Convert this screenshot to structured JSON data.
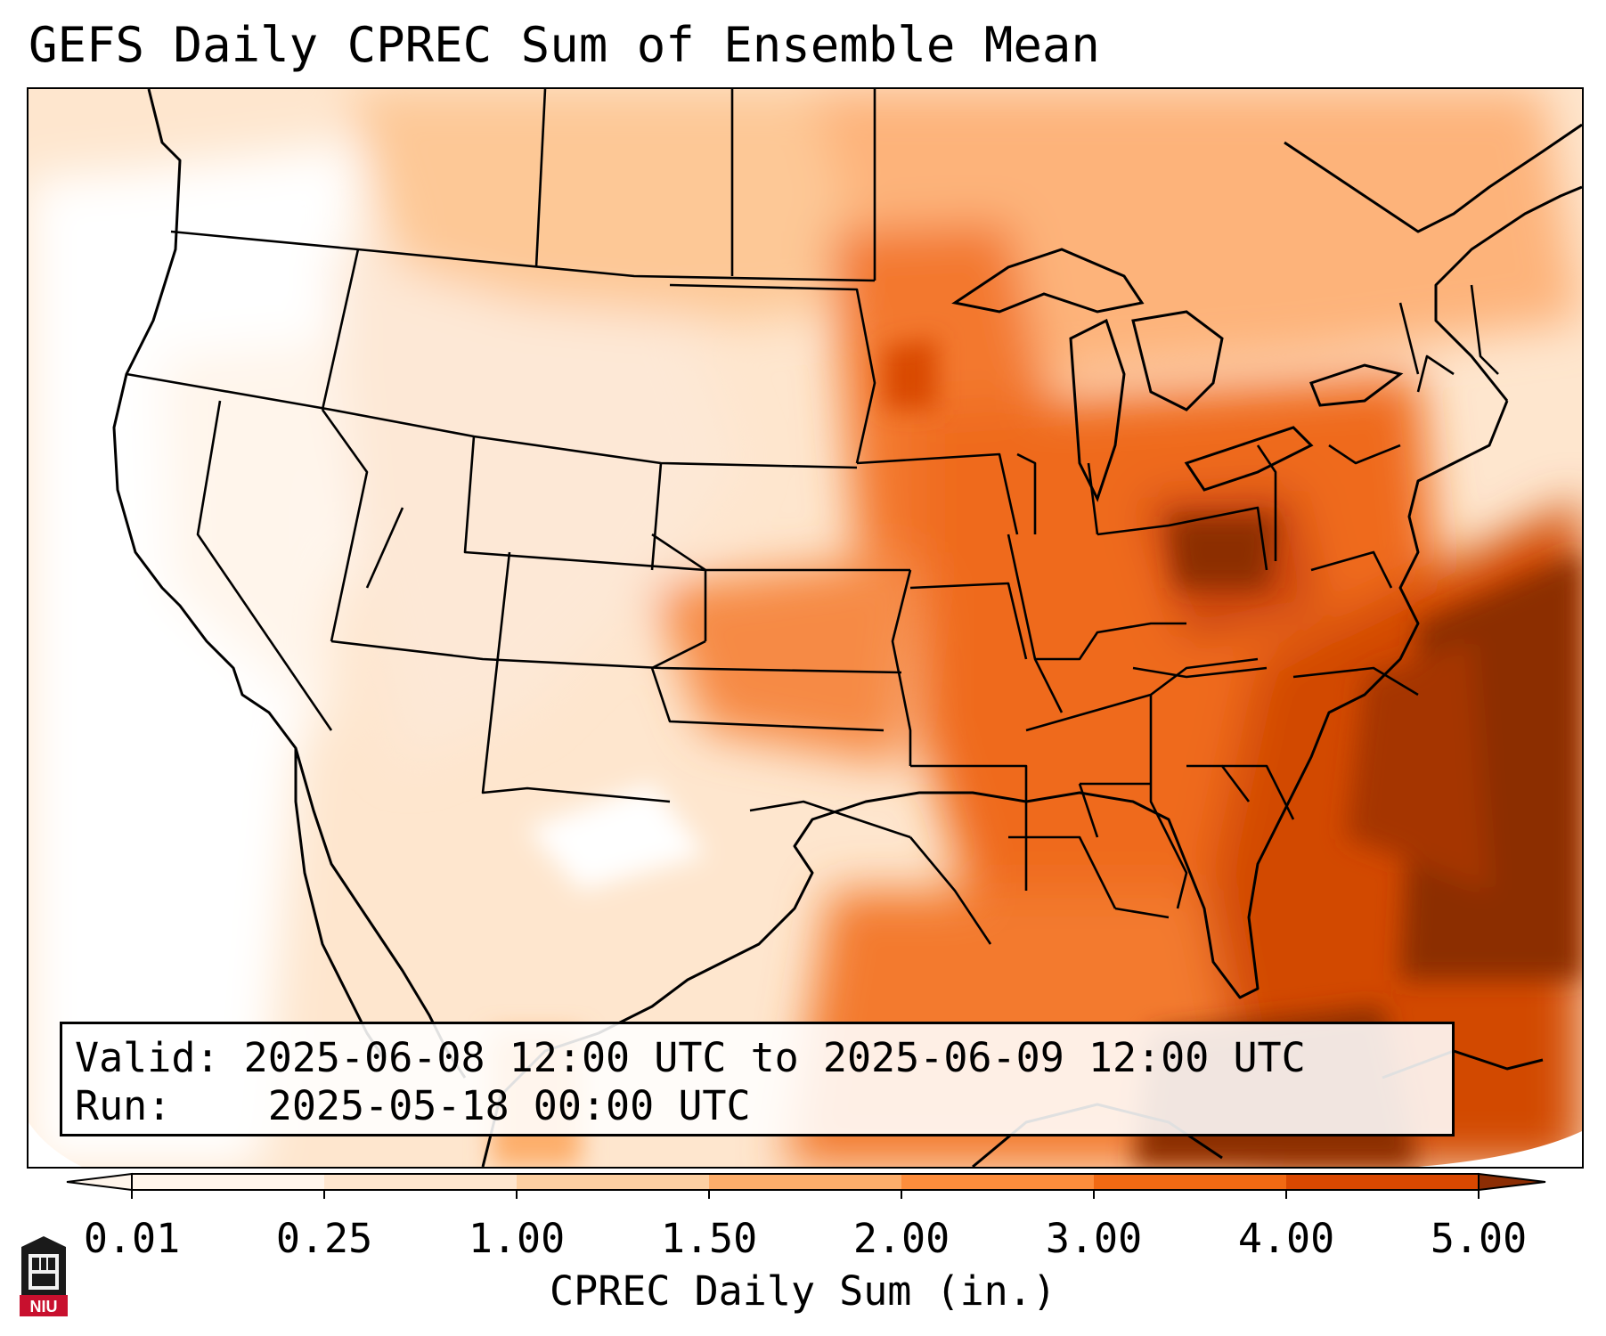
{
  "title": "GEFS Daily CPREC Sum of Ensemble Mean",
  "info": {
    "valid_label": "Valid:",
    "valid_value": "2025-06-08 12:00 UTC to 2025-06-09 12:00 UTC",
    "run_label": "Run:",
    "run_value": "2025-05-18 00:00 UTC"
  },
  "colorbar": {
    "label": "CPREC Daily Sum (in.)",
    "ticks": [
      "0.01",
      "0.25",
      "1.00",
      "1.50",
      "2.00",
      "3.00",
      "4.00",
      "5.00"
    ],
    "colors": [
      "#fff5eb",
      "#fee6ce",
      "#fdd0a2",
      "#fdae6b",
      "#fd8d3c",
      "#f16913",
      "#d94801",
      "#8c2d04"
    ],
    "extend": "both"
  },
  "logo_text": "NIU",
  "map": {
    "land_fill_colors": [
      "#fff5eb",
      "#fee6ce",
      "#fdd0a2",
      "#fdae6b",
      "#fd8d3c",
      "#f16913",
      "#d94801",
      "#8c2d04"
    ]
  }
}
